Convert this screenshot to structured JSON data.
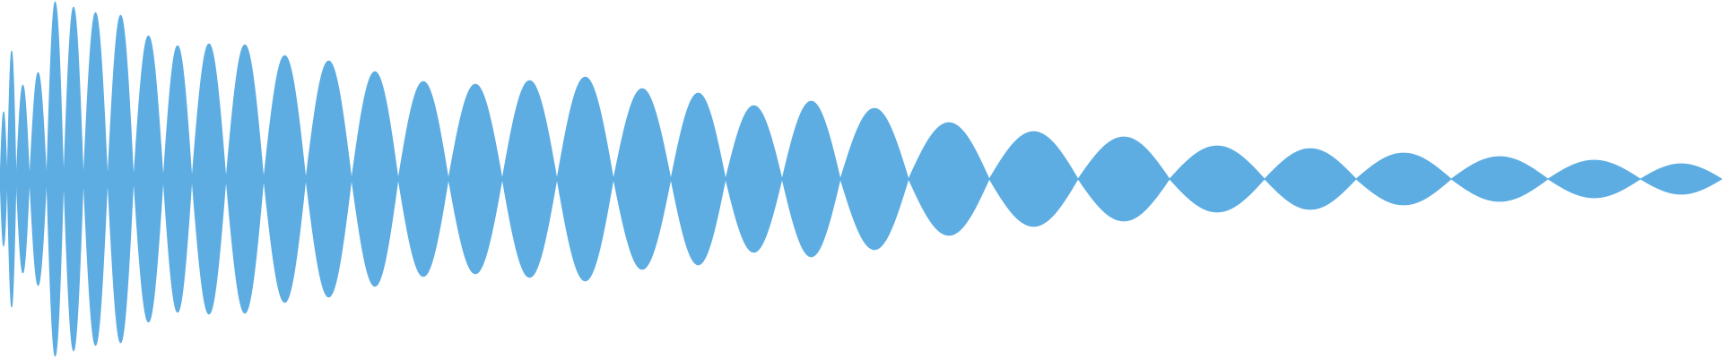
{
  "chart_data": {
    "type": "area",
    "title": "",
    "xlabel": "",
    "ylabel": "",
    "grid": false,
    "axes_visible": false,
    "legend": "none",
    "symmetric_about_zero": true,
    "ylim": [
      -1,
      1
    ],
    "xlim": [
      0,
      1920
    ],
    "color": "#5dade2",
    "lobes": [
      {
        "start": 0,
        "end": 8,
        "amplitude": 0.375
      },
      {
        "start": 8,
        "end": 18,
        "amplitude": 0.715
      },
      {
        "start": 18,
        "end": 33,
        "amplitude": 0.525
      },
      {
        "start": 33,
        "end": 52,
        "amplitude": 0.595
      },
      {
        "start": 52,
        "end": 71,
        "amplitude": 0.99
      },
      {
        "start": 71,
        "end": 93,
        "amplitude": 0.96
      },
      {
        "start": 93,
        "end": 120,
        "amplitude": 0.93
      },
      {
        "start": 120,
        "end": 149,
        "amplitude": 0.915
      },
      {
        "start": 149,
        "end": 182,
        "amplitude": 0.8
      },
      {
        "start": 182,
        "end": 214,
        "amplitude": 0.745
      },
      {
        "start": 214,
        "end": 252,
        "amplitude": 0.755
      },
      {
        "start": 252,
        "end": 294,
        "amplitude": 0.75
      },
      {
        "start": 294,
        "end": 341,
        "amplitude": 0.69
      },
      {
        "start": 341,
        "end": 392,
        "amplitude": 0.66
      },
      {
        "start": 392,
        "end": 444,
        "amplitude": 0.6
      },
      {
        "start": 444,
        "end": 500,
        "amplitude": 0.545
      },
      {
        "start": 500,
        "end": 560,
        "amplitude": 0.53
      },
      {
        "start": 560,
        "end": 621,
        "amplitude": 0.55
      },
      {
        "start": 621,
        "end": 684,
        "amplitude": 0.57
      },
      {
        "start": 684,
        "end": 748,
        "amplitude": 0.505
      },
      {
        "start": 748,
        "end": 809,
        "amplitude": 0.48
      },
      {
        "start": 809,
        "end": 872,
        "amplitude": 0.41
      },
      {
        "start": 872,
        "end": 937,
        "amplitude": 0.435
      },
      {
        "start": 937,
        "end": 1013,
        "amplitude": 0.395
      },
      {
        "start": 1013,
        "end": 1103,
        "amplitude": 0.315
      },
      {
        "start": 1103,
        "end": 1202,
        "amplitude": 0.265
      },
      {
        "start": 1202,
        "end": 1304,
        "amplitude": 0.235
      },
      {
        "start": 1304,
        "end": 1410,
        "amplitude": 0.185
      },
      {
        "start": 1410,
        "end": 1512,
        "amplitude": 0.17
      },
      {
        "start": 1512,
        "end": 1618,
        "amplitude": 0.145
      },
      {
        "start": 1618,
        "end": 1726,
        "amplitude": 0.125
      },
      {
        "start": 1726,
        "end": 1829,
        "amplitude": 0.105
      },
      {
        "start": 1829,
        "end": 1920,
        "amplitude": 0.085
      }
    ]
  }
}
